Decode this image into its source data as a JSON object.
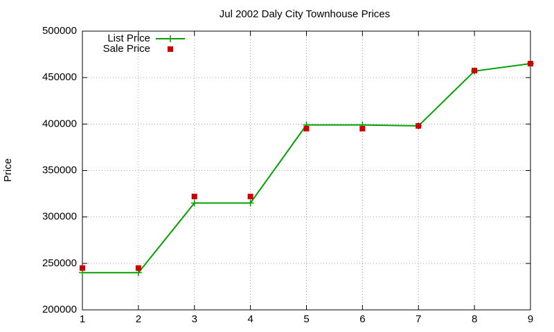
{
  "chart_data": {
    "type": "line",
    "title": "Jul 2002 Daly City Townhouse Prices",
    "y_label": "Price",
    "x": [
      1,
      2,
      3,
      4,
      5,
      6,
      7,
      8,
      9
    ],
    "series": [
      {
        "name": "List Price",
        "color": "#00a000",
        "mode": "lines+markers",
        "marker": "plus",
        "values": [
          240000,
          240000,
          315000,
          315000,
          399000,
          399000,
          398000,
          457000,
          465000
        ]
      },
      {
        "name": "Sale Price",
        "color": "#cc0000",
        "mode": "markers",
        "marker": "square",
        "values": [
          245000,
          245000,
          322000,
          322000,
          395000,
          395000,
          398000,
          457500,
          465000
        ]
      }
    ],
    "xlim": [
      1,
      9
    ],
    "xticks": [
      1,
      2,
      3,
      4,
      5,
      6,
      7,
      8,
      9
    ],
    "ylim": [
      200000,
      500000
    ],
    "yticks": [
      200000,
      250000,
      300000,
      350000,
      400000,
      450000,
      500000
    ],
    "grid": true,
    "legend": "top-left"
  }
}
